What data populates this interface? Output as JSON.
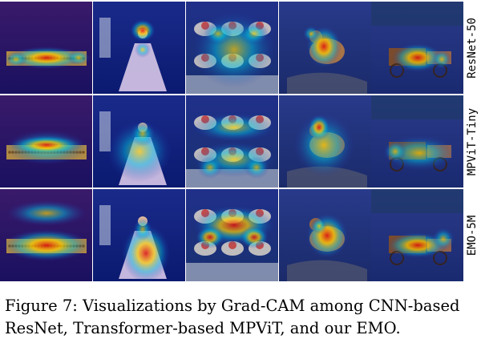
{
  "figure": {
    "rows": [
      {
        "label": "ResNet-50"
      },
      {
        "label": "MPViT-Tiny"
      },
      {
        "label": "EMO-5M"
      }
    ],
    "columns": [
      "abacus",
      "girl-in-dress",
      "baskets",
      "bird",
      "horse-cart"
    ],
    "colors": {
      "heat_low": "#2233aa",
      "heat_mid": "#00c0e0",
      "heat_high": "#ffd000",
      "heat_peak": "#e01010"
    }
  },
  "caption": {
    "text": "Figure 7: Visualizations by Grad-CAM among CNN-based ResNet, Transformer-based MPViT, and our EMO."
  }
}
